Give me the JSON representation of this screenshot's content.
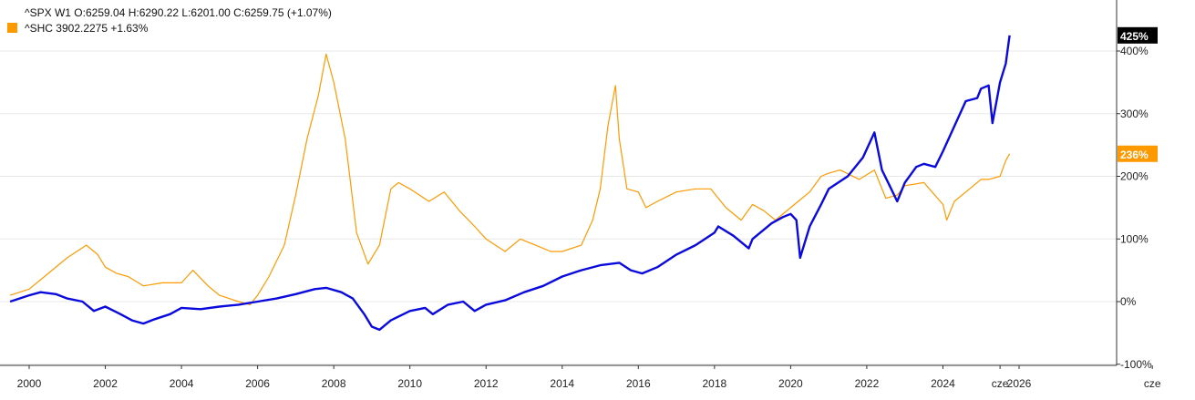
{
  "legend": {
    "spx_line": "^SPX  W1  O:6259.04  H:6290.22  L:6201.00  C:6259.75  (+1.07%)",
    "shc_line": "^SHC  3902.2275  +1.63%"
  },
  "colors": {
    "spx": "#0a0adf",
    "shc": "#ff9900",
    "spx_badge_bg": "#000000",
    "shc_badge_bg": "#ff9900",
    "axis": "#333333",
    "grid": "#e8e8e8"
  },
  "chart_data": {
    "type": "line",
    "title": "",
    "xlabel": "",
    "ylabel": "",
    "y_unit": "%",
    "ylim": [
      -100,
      430
    ],
    "xlim": [
      1999.5,
      2029.5
    ],
    "grid": true,
    "legend_placement": "top-left",
    "x_ticks": [
      {
        "x": 2000,
        "label": "2000"
      },
      {
        "x": 2002,
        "label": "2002"
      },
      {
        "x": 2004,
        "label": "2004"
      },
      {
        "x": 2006,
        "label": "2006"
      },
      {
        "x": 2008,
        "label": "2008"
      },
      {
        "x": 2010,
        "label": "2010"
      },
      {
        "x": 2012,
        "label": "2012"
      },
      {
        "x": 2014,
        "label": "2014"
      },
      {
        "x": 2016,
        "label": "2016"
      },
      {
        "x": 2018,
        "label": "2018"
      },
      {
        "x": 2020,
        "label": "2020"
      },
      {
        "x": 2022,
        "label": "2022"
      },
      {
        "x": 2024,
        "label": "2024"
      },
      {
        "x": 2025.5,
        "label": "cze"
      },
      {
        "x": 2026,
        "label": "2026"
      },
      {
        "x": 2029.5,
        "label": "cze"
      }
    ],
    "y_ticks": [
      {
        "y": 400,
        "label": "400%"
      },
      {
        "y": 300,
        "label": "300%"
      },
      {
        "y": 200,
        "label": "200%"
      },
      {
        "y": 100,
        "label": "100%"
      },
      {
        "y": 0,
        "label": "0%"
      },
      {
        "y": -100,
        "label": "-100%"
      }
    ],
    "series": [
      {
        "name": "^SPX",
        "last_value_label": "425%",
        "last_value": 425,
        "x": [
          1999.5,
          2000.0,
          2000.3,
          2000.7,
          2001.0,
          2001.4,
          2001.7,
          2002.0,
          2002.4,
          2002.7,
          2003.0,
          2003.3,
          2003.7,
          2004.0,
          2004.5,
          2005.0,
          2005.5,
          2006.0,
          2006.5,
          2007.0,
          2007.5,
          2007.8,
          2008.2,
          2008.5,
          2008.8,
          2009.0,
          2009.2,
          2009.5,
          2010.0,
          2010.4,
          2010.6,
          2011.0,
          2011.4,
          2011.7,
          2012.0,
          2012.5,
          2013.0,
          2013.5,
          2014.0,
          2014.5,
          2015.0,
          2015.5,
          2015.8,
          2016.1,
          2016.5,
          2017.0,
          2017.5,
          2018.0,
          2018.1,
          2018.5,
          2018.9,
          2019.0,
          2019.5,
          2019.8,
          2020.0,
          2020.15,
          2020.25,
          2020.5,
          2020.8,
          2021.0,
          2021.5,
          2021.9,
          2022.2,
          2022.4,
          2022.6,
          2022.8,
          2023.0,
          2023.3,
          2023.5,
          2023.8,
          2024.0,
          2024.3,
          2024.6,
          2024.9,
          2025.0,
          2025.2,
          2025.3,
          2025.5,
          2025.65,
          2025.75
        ],
        "values": [
          0,
          10,
          15,
          12,
          5,
          0,
          -15,
          -8,
          -20,
          -30,
          -35,
          -28,
          -20,
          -10,
          -12,
          -8,
          -5,
          0,
          5,
          12,
          20,
          22,
          15,
          5,
          -20,
          -40,
          -45,
          -30,
          -15,
          -10,
          -20,
          -5,
          0,
          -15,
          -5,
          2,
          15,
          25,
          40,
          50,
          58,
          62,
          50,
          45,
          55,
          75,
          90,
          110,
          120,
          105,
          85,
          100,
          125,
          135,
          140,
          130,
          70,
          120,
          155,
          180,
          200,
          230,
          270,
          210,
          185,
          160,
          190,
          215,
          220,
          215,
          240,
          280,
          320,
          325,
          340,
          345,
          285,
          350,
          380,
          425
        ]
      },
      {
        "name": "^SHC",
        "last_value_label": "236%",
        "last_value": 236,
        "x": [
          1999.5,
          2000.0,
          2000.5,
          2001.0,
          2001.5,
          2001.8,
          2002.0,
          2002.3,
          2002.6,
          2003.0,
          2003.5,
          2004.0,
          2004.3,
          2004.7,
          2005.0,
          2005.5,
          2005.8,
          2006.0,
          2006.3,
          2006.7,
          2007.0,
          2007.3,
          2007.6,
          2007.8,
          2008.0,
          2008.3,
          2008.6,
          2008.9,
          2009.2,
          2009.5,
          2009.7,
          2010.0,
          2010.5,
          2010.9,
          2011.3,
          2011.7,
          2012.0,
          2012.5,
          2012.9,
          2013.3,
          2013.7,
          2014.0,
          2014.5,
          2014.8,
          2015.0,
          2015.2,
          2015.4,
          2015.5,
          2015.7,
          2016.0,
          2016.2,
          2016.5,
          2017.0,
          2017.5,
          2017.9,
          2018.3,
          2018.7,
          2019.0,
          2019.3,
          2019.6,
          2020.0,
          2020.2,
          2020.5,
          2020.8,
          2021.0,
          2021.3,
          2021.8,
          2022.2,
          2022.5,
          2022.8,
          2023.0,
          2023.5,
          2024.0,
          2024.1,
          2024.3,
          2024.7,
          2025.0,
          2025.2,
          2025.5,
          2025.65,
          2025.75
        ],
        "values": [
          10,
          20,
          45,
          70,
          90,
          75,
          55,
          45,
          40,
          25,
          30,
          30,
          50,
          25,
          10,
          0,
          -5,
          10,
          40,
          90,
          170,
          260,
          330,
          395,
          350,
          260,
          110,
          60,
          90,
          180,
          190,
          180,
          160,
          175,
          145,
          120,
          100,
          80,
          100,
          90,
          80,
          80,
          90,
          130,
          180,
          280,
          345,
          260,
          180,
          175,
          150,
          160,
          175,
          180,
          180,
          150,
          130,
          155,
          145,
          130,
          150,
          160,
          175,
          200,
          205,
          210,
          195,
          210,
          165,
          170,
          185,
          190,
          155,
          130,
          160,
          180,
          195,
          195,
          200,
          225,
          236
        ]
      }
    ]
  }
}
